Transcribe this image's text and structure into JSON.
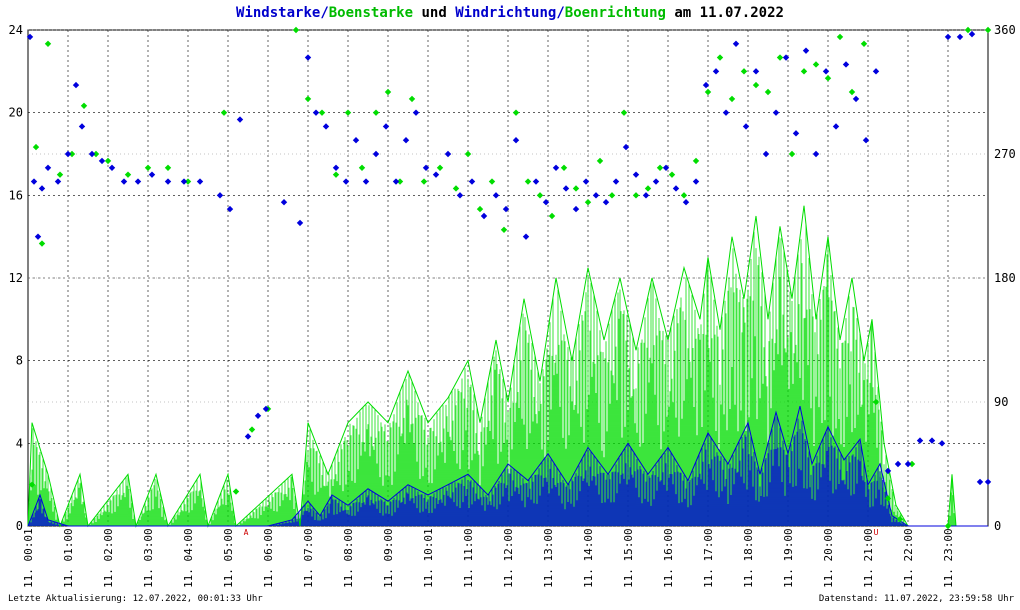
{
  "header": {
    "title_parts": [
      {
        "text": "Windstarke",
        "color": "#0000cc"
      },
      {
        "text": "/",
        "color": "#0000cc"
      },
      {
        "text": "Boenstarke",
        "color": "#00bb00"
      },
      {
        "text": " und ",
        "color": "#000000"
      },
      {
        "text": "Windrichtung",
        "color": "#0000cc"
      },
      {
        "text": "/",
        "color": "#0000cc"
      },
      {
        "text": "Boenrichtung",
        "color": "#00bb00"
      },
      {
        "text": " am 11.07.2022",
        "color": "#000000"
      }
    ]
  },
  "footer": {
    "last_update": "Letzte Aktualisierung: 12.07.2022, 00:01:33 Uhr",
    "data_status": "Datenstand: 11.07.2022, 23:59:58 Uhr"
  },
  "chart_data": {
    "type": "line",
    "x_tick_labels": [
      "11. 00:01",
      "11. 01:00",
      "11. 02:00",
      "11. 03:00",
      "11. 04:00",
      "11. 05:00",
      "11. 06:00",
      "11. 07:00",
      "11. 08:00",
      "11. 09:00",
      "11. 10:01",
      "11. 11:00",
      "11. 12:00",
      "11. 13:00",
      "11. 14:00",
      "11. 15:00",
      "11. 16:00",
      "11. 17:00",
      "11. 18:00",
      "11. 19:00",
      "11. 20:00",
      "11. 21:00",
      "11. 22:00",
      "11. 23:00"
    ],
    "y_left_ticks": [
      "0",
      "4",
      "8",
      "12",
      "16",
      "20",
      "24"
    ],
    "y_left_range": [
      0,
      24
    ],
    "y_right_ticks": [
      "0",
      "90",
      "180",
      "270",
      "360"
    ],
    "y_right_range": [
      0,
      360
    ],
    "markers": [
      {
        "label": "A",
        "hour": 5.45
      },
      {
        "label": "U",
        "hour": 21.2
      }
    ],
    "grid": true,
    "colors": {
      "wind": "#0000dd",
      "gust": "#00dd00",
      "marker": "#cc0000"
    },
    "series": [
      {
        "name": "Windstarke",
        "kind": "speed",
        "points": [
          [
            0.0,
            0.0
          ],
          [
            0.3,
            1.5
          ],
          [
            0.5,
            0.3
          ],
          [
            1.0,
            0.0
          ],
          [
            2.0,
            0.0
          ],
          [
            3.0,
            0.0
          ],
          [
            4.0,
            0.0
          ],
          [
            5.0,
            0.0
          ],
          [
            6.0,
            0.0
          ],
          [
            6.6,
            0.3
          ],
          [
            7.0,
            1.2
          ],
          [
            7.3,
            0.5
          ],
          [
            7.6,
            1.5
          ],
          [
            8.0,
            1.0
          ],
          [
            8.5,
            1.8
          ],
          [
            9.0,
            1.2
          ],
          [
            9.5,
            2.0
          ],
          [
            10.0,
            1.5
          ],
          [
            10.5,
            2.0
          ],
          [
            11.0,
            2.5
          ],
          [
            11.5,
            1.5
          ],
          [
            12.0,
            3.0
          ],
          [
            12.5,
            2.2
          ],
          [
            13.0,
            3.5
          ],
          [
            13.5,
            2.0
          ],
          [
            14.0,
            3.8
          ],
          [
            14.5,
            2.5
          ],
          [
            15.0,
            4.0
          ],
          [
            15.5,
            2.5
          ],
          [
            16.0,
            3.8
          ],
          [
            16.5,
            2.2
          ],
          [
            17.0,
            4.5
          ],
          [
            17.5,
            3.0
          ],
          [
            18.0,
            5.0
          ],
          [
            18.3,
            2.5
          ],
          [
            18.7,
            5.5
          ],
          [
            19.0,
            3.5
          ],
          [
            19.3,
            5.8
          ],
          [
            19.6,
            3.0
          ],
          [
            20.0,
            4.8
          ],
          [
            20.4,
            3.2
          ],
          [
            20.8,
            4.2
          ],
          [
            21.0,
            2.0
          ],
          [
            21.3,
            3.0
          ],
          [
            21.6,
            0.5
          ],
          [
            22.0,
            0.0
          ],
          [
            23.0,
            0.0
          ],
          [
            24.0,
            0.0
          ]
        ]
      },
      {
        "name": "Boenstarke",
        "kind": "speed",
        "points": [
          [
            0.0,
            0.0
          ],
          [
            0.1,
            5.0
          ],
          [
            0.5,
            2.5
          ],
          [
            0.8,
            0.0
          ],
          [
            1.3,
            2.5
          ],
          [
            1.5,
            0.0
          ],
          [
            2.5,
            2.5
          ],
          [
            2.7,
            0.0
          ],
          [
            3.2,
            2.5
          ],
          [
            3.5,
            0.0
          ],
          [
            4.3,
            2.5
          ],
          [
            4.5,
            0.0
          ],
          [
            5.0,
            2.5
          ],
          [
            5.2,
            0.0
          ],
          [
            6.6,
            2.5
          ],
          [
            6.8,
            0.0
          ],
          [
            7.0,
            5.0
          ],
          [
            7.5,
            2.5
          ],
          [
            8.0,
            5.0
          ],
          [
            8.5,
            6.0
          ],
          [
            9.0,
            5.0
          ],
          [
            9.5,
            7.5
          ],
          [
            10.0,
            5.0
          ],
          [
            10.5,
            6.2
          ],
          [
            11.0,
            8.0
          ],
          [
            11.3,
            5.0
          ],
          [
            11.7,
            9.0
          ],
          [
            12.0,
            6.0
          ],
          [
            12.4,
            11.0
          ],
          [
            12.8,
            7.0
          ],
          [
            13.2,
            12.0
          ],
          [
            13.6,
            8.0
          ],
          [
            14.0,
            12.5
          ],
          [
            14.4,
            9.0
          ],
          [
            14.8,
            12.0
          ],
          [
            15.2,
            8.5
          ],
          [
            15.6,
            12.0
          ],
          [
            16.0,
            9.0
          ],
          [
            16.4,
            12.5
          ],
          [
            16.8,
            10.0
          ],
          [
            17.0,
            13.0
          ],
          [
            17.3,
            9.5
          ],
          [
            17.6,
            14.0
          ],
          [
            17.9,
            11.0
          ],
          [
            18.2,
            15.0
          ],
          [
            18.5,
            10.0
          ],
          [
            18.8,
            14.5
          ],
          [
            19.1,
            11.0
          ],
          [
            19.4,
            15.5
          ],
          [
            19.7,
            10.0
          ],
          [
            20.0,
            14.0
          ],
          [
            20.3,
            9.0
          ],
          [
            20.6,
            12.0
          ],
          [
            20.9,
            8.0
          ],
          [
            21.1,
            10.0
          ],
          [
            21.4,
            4.0
          ],
          [
            21.7,
            1.0
          ],
          [
            22.0,
            0.0
          ],
          [
            23.0,
            0.0
          ],
          [
            23.1,
            2.5
          ],
          [
            23.2,
            0.0
          ],
          [
            24.0,
            0.0
          ]
        ]
      },
      {
        "name": "Windrichtung",
        "kind": "direction",
        "points": [
          [
            0.05,
            355
          ],
          [
            0.15,
            250
          ],
          [
            0.25,
            210
          ],
          [
            0.35,
            245
          ],
          [
            0.5,
            260
          ],
          [
            0.75,
            250
          ],
          [
            1.0,
            270
          ],
          [
            1.2,
            320
          ],
          [
            1.35,
            290
          ],
          [
            1.6,
            270
          ],
          [
            1.85,
            265
          ],
          [
            2.1,
            260
          ],
          [
            2.4,
            250
          ],
          [
            2.75,
            250
          ],
          [
            3.1,
            255
          ],
          [
            3.5,
            250
          ],
          [
            3.9,
            250
          ],
          [
            4.3,
            250
          ],
          [
            4.8,
            240
          ],
          [
            5.05,
            230
          ],
          [
            5.3,
            295
          ],
          [
            5.5,
            65
          ],
          [
            5.75,
            80
          ],
          [
            5.95,
            85
          ],
          [
            6.4,
            235
          ],
          [
            6.8,
            220
          ],
          [
            7.0,
            340
          ],
          [
            7.2,
            300
          ],
          [
            7.45,
            290
          ],
          [
            7.7,
            260
          ],
          [
            7.95,
            250
          ],
          [
            8.2,
            280
          ],
          [
            8.45,
            250
          ],
          [
            8.7,
            270
          ],
          [
            8.95,
            290
          ],
          [
            9.2,
            250
          ],
          [
            9.45,
            280
          ],
          [
            9.7,
            300
          ],
          [
            9.95,
            260
          ],
          [
            10.2,
            255
          ],
          [
            10.5,
            270
          ],
          [
            10.8,
            240
          ],
          [
            11.1,
            250
          ],
          [
            11.4,
            225
          ],
          [
            11.7,
            240
          ],
          [
            11.95,
            230
          ],
          [
            12.2,
            280
          ],
          [
            12.45,
            210
          ],
          [
            12.7,
            250
          ],
          [
            12.95,
            235
          ],
          [
            13.2,
            260
          ],
          [
            13.45,
            245
          ],
          [
            13.7,
            230
          ],
          [
            13.95,
            250
          ],
          [
            14.2,
            240
          ],
          [
            14.45,
            235
          ],
          [
            14.7,
            250
          ],
          [
            14.95,
            275
          ],
          [
            15.2,
            255
          ],
          [
            15.45,
            240
          ],
          [
            15.7,
            250
          ],
          [
            15.95,
            260
          ],
          [
            16.2,
            245
          ],
          [
            16.45,
            235
          ],
          [
            16.7,
            250
          ],
          [
            16.95,
            320
          ],
          [
            17.2,
            330
          ],
          [
            17.45,
            300
          ],
          [
            17.7,
            350
          ],
          [
            17.95,
            290
          ],
          [
            18.2,
            330
          ],
          [
            18.45,
            270
          ],
          [
            18.7,
            300
          ],
          [
            18.95,
            340
          ],
          [
            19.2,
            285
          ],
          [
            19.45,
            345
          ],
          [
            19.7,
            270
          ],
          [
            19.95,
            330
          ],
          [
            20.2,
            290
          ],
          [
            20.45,
            335
          ],
          [
            20.7,
            310
          ],
          [
            20.95,
            280
          ],
          [
            21.2,
            330
          ],
          [
            21.5,
            40
          ],
          [
            21.75,
            45
          ],
          [
            22.0,
            45
          ],
          [
            22.3,
            62
          ],
          [
            22.6,
            62
          ],
          [
            22.85,
            60
          ],
          [
            23.0,
            355
          ],
          [
            23.3,
            355
          ],
          [
            23.6,
            357
          ],
          [
            23.8,
            32
          ],
          [
            24.0,
            32
          ]
        ]
      },
      {
        "name": "Boenrichtung",
        "kind": "direction",
        "points": [
          [
            0.1,
            30
          ],
          [
            0.2,
            275
          ],
          [
            0.35,
            205
          ],
          [
            0.5,
            350
          ],
          [
            0.8,
            255
          ],
          [
            1.1,
            270
          ],
          [
            1.4,
            305
          ],
          [
            1.7,
            270
          ],
          [
            2.0,
            265
          ],
          [
            2.5,
            255
          ],
          [
            3.0,
            260
          ],
          [
            3.5,
            260
          ],
          [
            4.0,
            250
          ],
          [
            4.9,
            300
          ],
          [
            5.2,
            25
          ],
          [
            5.6,
            70
          ],
          [
            6.0,
            85
          ],
          [
            6.7,
            360
          ],
          [
            7.0,
            310
          ],
          [
            7.35,
            300
          ],
          [
            7.7,
            255
          ],
          [
            8.0,
            300
          ],
          [
            8.35,
            260
          ],
          [
            8.7,
            300
          ],
          [
            9.0,
            315
          ],
          [
            9.3,
            250
          ],
          [
            9.6,
            310
          ],
          [
            9.9,
            250
          ],
          [
            10.3,
            260
          ],
          [
            10.7,
            245
          ],
          [
            11.0,
            270
          ],
          [
            11.3,
            230
          ],
          [
            11.6,
            250
          ],
          [
            11.9,
            215
          ],
          [
            12.2,
            300
          ],
          [
            12.5,
            250
          ],
          [
            12.8,
            240
          ],
          [
            13.1,
            225
          ],
          [
            13.4,
            260
          ],
          [
            13.7,
            245
          ],
          [
            14.0,
            235
          ],
          [
            14.3,
            265
          ],
          [
            14.6,
            240
          ],
          [
            14.9,
            300
          ],
          [
            15.2,
            240
          ],
          [
            15.5,
            245
          ],
          [
            15.8,
            260
          ],
          [
            16.1,
            255
          ],
          [
            16.4,
            240
          ],
          [
            16.7,
            265
          ],
          [
            17.0,
            315
          ],
          [
            17.3,
            340
          ],
          [
            17.6,
            310
          ],
          [
            17.9,
            330
          ],
          [
            18.2,
            320
          ],
          [
            18.5,
            315
          ],
          [
            18.8,
            340
          ],
          [
            19.1,
            270
          ],
          [
            19.4,
            330
          ],
          [
            19.7,
            335
          ],
          [
            20.0,
            325
          ],
          [
            20.3,
            355
          ],
          [
            20.6,
            315
          ],
          [
            20.9,
            350
          ],
          [
            21.2,
            90
          ],
          [
            21.5,
            20
          ],
          [
            21.8,
            5
          ],
          [
            22.1,
            45
          ],
          [
            23.0,
            0
          ],
          [
            23.5,
            360
          ],
          [
            24.0,
            360
          ]
        ]
      }
    ]
  }
}
